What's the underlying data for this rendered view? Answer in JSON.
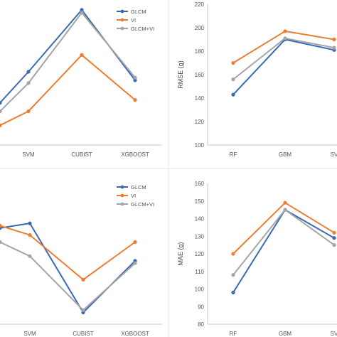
{
  "chart_data": [
    {
      "type": "line",
      "title": "",
      "ylabel": "",
      "categories": [
        "",
        "SVM",
        "CUBIST",
        "XGBOOST"
      ],
      "ylim": [
        165,
        215
      ],
      "yticks": [],
      "legend": "top-right",
      "series": [
        {
          "name": "GLCM",
          "color": "#3a6ab7",
          "values": [
            180,
            191,
            213,
            188
          ]
        },
        {
          "name": "VI",
          "color": "#ed7d31",
          "values": [
            172,
            177,
            197,
            181
          ]
        },
        {
          "name": "GLCM+VI",
          "color": "#a5a5a5",
          "values": [
            177,
            187,
            212,
            189
          ]
        }
      ]
    },
    {
      "type": "line",
      "title": "",
      "ylabel": "RMSE (g)",
      "categories": [
        "RF",
        "GBM",
        "SV"
      ],
      "ylim": [
        100,
        220
      ],
      "yticks": [
        100,
        120,
        140,
        160,
        180,
        200,
        220
      ],
      "series": [
        {
          "name": "GLCM",
          "color": "#3a6ab7",
          "values": [
            143,
            190,
            181
          ]
        },
        {
          "name": "VI",
          "color": "#ed7d31",
          "values": [
            170,
            197,
            190
          ]
        },
        {
          "name": "GLCM+VI",
          "color": "#a5a5a5",
          "values": [
            156,
            191,
            183
          ]
        }
      ]
    },
    {
      "type": "line",
      "title": "",
      "ylabel": "",
      "categories": [
        "",
        "SVM",
        "CUBIST",
        "XGBOOST"
      ],
      "ylim": [
        105,
        165
      ],
      "yticks": [],
      "legend": "top-right",
      "series": [
        {
          "name": "GLCM",
          "color": "#3a6ab7",
          "values": [
            146,
            148,
            110,
            132
          ]
        },
        {
          "name": "VI",
          "color": "#ed7d31",
          "values": [
            147,
            143,
            124,
            140
          ]
        },
        {
          "name": "GLCM+VI",
          "color": "#a5a5a5",
          "values": [
            140,
            134,
            111,
            131
          ]
        }
      ]
    },
    {
      "type": "line",
      "title": "",
      "ylabel": "MAE (g)",
      "categories": [
        "RF",
        "GBM",
        "SV"
      ],
      "ylim": [
        80,
        160
      ],
      "yticks": [
        80,
        90,
        100,
        110,
        120,
        130,
        140,
        150,
        160
      ],
      "series": [
        {
          "name": "GLCM",
          "color": "#3a6ab7",
          "values": [
            98,
            145,
            129
          ]
        },
        {
          "name": "VI",
          "color": "#ed7d31",
          "values": [
            120,
            149,
            132
          ]
        },
        {
          "name": "GLCM+VI",
          "color": "#a5a5a5",
          "values": [
            108,
            145,
            125
          ]
        }
      ]
    }
  ]
}
